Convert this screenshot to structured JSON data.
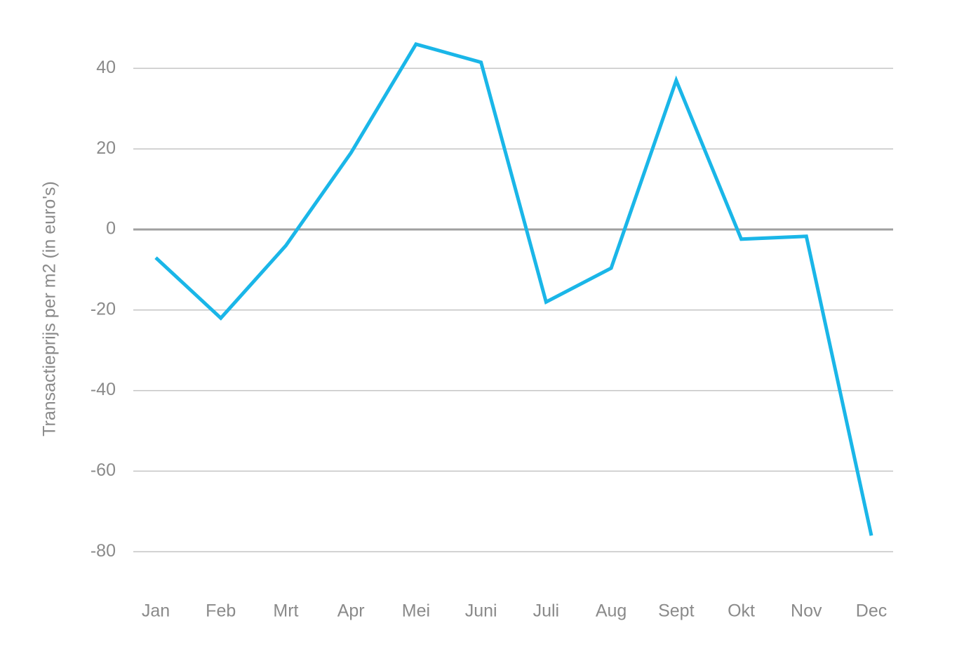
{
  "chart_data": {
    "type": "line",
    "y_label": "Transactieprijs per m2 (in euro's)",
    "categories": [
      "Jan",
      "Feb",
      "Mrt",
      "Apr",
      "Mei",
      "Juni",
      "Juli",
      "Aug",
      "Sept",
      "Okt",
      "Nov",
      "Dec"
    ],
    "series": [
      {
        "name": "Transactieprijs",
        "color": "#1ab6e8",
        "values": [
          -7,
          -22,
          -4,
          19,
          46,
          41.5,
          -18,
          -9.6,
          37,
          -2.4,
          -1.7,
          -76
        ]
      }
    ],
    "ylim": [
      -90,
      50
    ],
    "yticks": [
      -80,
      -60,
      -40,
      -20,
      0,
      20,
      40
    ],
    "grid": true
  }
}
